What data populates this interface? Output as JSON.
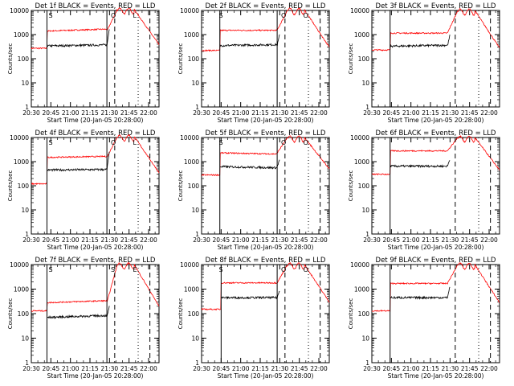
{
  "colors": {
    "events": "#000000",
    "lld": "#ff0000",
    "axis": "#000000",
    "background": "#ffffff"
  },
  "chart_data": {
    "type": "line",
    "yscale": "log",
    "ylim": [
      1,
      10000
    ],
    "xlim": [
      "20:30",
      "22:08"
    ],
    "ytick_labels": [
      "1",
      "10",
      "100",
      "1000",
      "10000"
    ],
    "xtick_labels": [
      "20:30",
      "20:45",
      "21:00",
      "21:15",
      "21:30",
      "21:45",
      "22:00"
    ],
    "ylabel": "Counts/sec",
    "xlabel": "Start Time (20-Jan-05 20:28:00)",
    "panels": [
      {
        "title": "Det 1f BLACK = Events, RED = LLD",
        "events_onset": "20:42",
        "solid_markers": [
          "20:42",
          "21:28"
        ],
        "dashed_markers": [
          "21:34",
          "22:01"
        ],
        "dotted_markers": [
          "21:52"
        ],
        "corner_letters": [
          "S",
          "O",
          "L"
        ],
        "events": {
          "early": 220,
          "pre": 340,
          "pre_slope": 1.1,
          "jump": 6
        },
        "lld": {
          "early": 270,
          "pre": 1400,
          "pre_slope": 1.2,
          "flare": 11000,
          "late": 380
        }
      },
      {
        "title": "Det 2f BLACK = Events, RED = LLD",
        "events_onset": "20:44",
        "solid_markers": [
          "20:44",
          "21:28"
        ],
        "dashed_markers": [
          "21:34",
          "22:01"
        ],
        "dotted_markers": [
          "21:52"
        ],
        "corner_letters": [
          "S",
          "O",
          "O"
        ],
        "events": {
          "early": 30,
          "pre": 350,
          "pre_slope": 1.1,
          "jump": 3
        },
        "lld": {
          "early": 220,
          "pre": 1500,
          "pre_slope": 1.0,
          "flare": 10500,
          "late": 300
        }
      },
      {
        "title": "Det 3f BLACK = Events, RED = LLD",
        "events_onset": "20:44",
        "solid_markers": [
          "20:44"
        ],
        "dashed_markers": [
          "21:34",
          "22:01"
        ],
        "dotted_markers": [
          "21:52"
        ],
        "corner_letters": [],
        "events": {
          "early": 18,
          "pre": 330,
          "pre_slope": 1.1,
          "jump": 3
        },
        "lld": {
          "early": 230,
          "pre": 1150,
          "pre_slope": 1.0,
          "flare": 10000,
          "late": 280
        }
      },
      {
        "title": "Det 4f BLACK = Events, RED = LLD",
        "events_onset": "20:42",
        "solid_markers": [
          "20:42",
          "21:28"
        ],
        "dashed_markers": [
          "21:34",
          "22:01"
        ],
        "dotted_markers": [
          "21:52"
        ],
        "corner_letters": [
          "S",
          "O",
          "L"
        ],
        "events": {
          "early": 30,
          "pre": 450,
          "pre_slope": 1.05,
          "jump": 6
        },
        "lld": {
          "early": 120,
          "pre": 1500,
          "pre_slope": 1.1,
          "flare": 11000,
          "late": 350
        }
      },
      {
        "title": "Det 5f BLACK = Events, RED = LLD",
        "events_onset": "20:44",
        "solid_markers": [
          "20:44",
          "21:28"
        ],
        "dashed_markers": [
          "21:34",
          "22:01"
        ],
        "dotted_markers": [
          "21:52"
        ],
        "corner_letters": [
          "S",
          "O",
          "O"
        ],
        "events": {
          "early": 40,
          "pre": 620,
          "pre_slope": 0.9,
          "jump": 2
        },
        "lld": {
          "early": 280,
          "pre": 2300,
          "pre_slope": 0.9,
          "flare": 10000,
          "late": 500
        }
      },
      {
        "title": "Det 6f BLACK = Events, RED = LLD",
        "events_onset": "20:44",
        "solid_markers": [
          "20:44"
        ],
        "dashed_markers": [
          "21:34",
          "22:01"
        ],
        "dotted_markers": [
          "21:52"
        ],
        "corner_letters": [],
        "events": {
          "early": 25,
          "pre": 650,
          "pre_slope": 1.0,
          "jump": 2
        },
        "lld": {
          "early": 300,
          "pre": 2800,
          "pre_slope": 1.0,
          "flare": 10000,
          "late": 450
        }
      },
      {
        "title": "Det 7f BLACK = Events, RED = LLD",
        "events_onset": "20:42",
        "solid_markers": [
          "20:42",
          "21:28"
        ],
        "dashed_markers": [
          "21:34",
          "22:01"
        ],
        "dotted_markers": [
          "21:52"
        ],
        "corner_letters": [
          "S",
          "S",
          "E"
        ],
        "events": {
          "early": 14,
          "pre": 70,
          "pre_slope": 1.2,
          "jump": 3
        },
        "lld": {
          "early": 130,
          "pre": 280,
          "pre_slope": 1.2,
          "flare": 10000,
          "late": 200
        }
      },
      {
        "title": "Det 8f BLACK = Events, RED = LLD",
        "events_onset": "20:45",
        "solid_markers": [
          "20:45",
          "21:28"
        ],
        "dashed_markers": [
          "21:34",
          "22:01"
        ],
        "dotted_markers": [
          "21:52"
        ],
        "corner_letters": [
          "S",
          "O",
          "O"
        ],
        "events": {
          "early": 20,
          "pre": 450,
          "pre_slope": 1.0,
          "jump": 2
        },
        "lld": {
          "early": 150,
          "pre": 1800,
          "pre_slope": 1.0,
          "flare": 10000,
          "late": 300
        }
      },
      {
        "title": "Det 9f BLACK = Events, RED = LLD",
        "events_onset": "20:44",
        "solid_markers": [
          "20:44"
        ],
        "dashed_markers": [
          "21:34",
          "22:01"
        ],
        "dotted_markers": [
          "21:52"
        ],
        "corner_letters": [],
        "events": {
          "early": 25,
          "pre": 450,
          "pre_slope": 1.0,
          "jump": 3
        },
        "lld": {
          "early": 130,
          "pre": 1700,
          "pre_slope": 1.0,
          "flare": 10000,
          "late": 280
        }
      }
    ]
  }
}
